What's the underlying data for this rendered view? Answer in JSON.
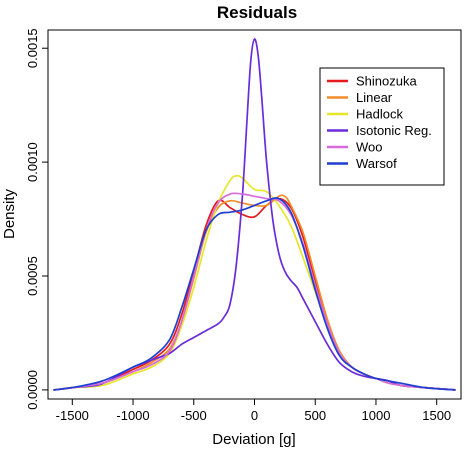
{
  "chart_data": {
    "type": "line",
    "title": "Residuals",
    "xlabel": "Deviation [g]",
    "ylabel": "Density",
    "xlim": [
      -1700,
      1700
    ],
    "ylim": [
      -4e-05,
      0.00158
    ],
    "x_ticks": [
      -1500,
      -1000,
      -500,
      0,
      500,
      1000,
      1500
    ],
    "x_tick_labels": [
      "-1500",
      "-1000",
      "-500",
      "0",
      "500",
      "1000",
      "1500"
    ],
    "y_ticks": [
      0,
      0.0005,
      0.001,
      0.0015
    ],
    "y_tick_labels": [
      "0.0000",
      "0.0005",
      "0.0010",
      "0.0015"
    ],
    "grid": false,
    "legend_position": "top-right",
    "series": [
      {
        "name": "Shinozuka",
        "color": "#e41a1c",
        "points": [
          [
            -1650,
            0
          ],
          [
            -1500,
            1e-05
          ],
          [
            -1250,
            3e-05
          ],
          [
            -1000,
            9e-05
          ],
          [
            -850,
            0.00013
          ],
          [
            -700,
            0.0002
          ],
          [
            -600,
            0.00033
          ],
          [
            -500,
            0.00052
          ],
          [
            -400,
            0.00072
          ],
          [
            -300,
            0.00083
          ],
          [
            -200,
            0.0008
          ],
          [
            -100,
            0.00077
          ],
          [
            0,
            0.00076
          ],
          [
            100,
            0.00081
          ],
          [
            200,
            0.00084
          ],
          [
            300,
            0.0008
          ],
          [
            400,
            0.00067
          ],
          [
            500,
            0.00048
          ],
          [
            600,
            0.0003
          ],
          [
            700,
            0.00017
          ],
          [
            800,
            0.0001
          ],
          [
            900,
            7e-05
          ],
          [
            1000,
            5e-05
          ],
          [
            1100,
            4e-05
          ],
          [
            1200,
            2e-05
          ],
          [
            1400,
            1e-05
          ],
          [
            1650,
            0
          ]
        ]
      },
      {
        "name": "Linear",
        "color": "#f28c28",
        "points": [
          [
            -1650,
            0
          ],
          [
            -1500,
            1e-05
          ],
          [
            -1250,
            3e-05
          ],
          [
            -1000,
            8e-05
          ],
          [
            -850,
            0.00012
          ],
          [
            -700,
            0.00018
          ],
          [
            -600,
            0.0003
          ],
          [
            -500,
            0.00049
          ],
          [
            -400,
            0.00069
          ],
          [
            -300,
            0.0008
          ],
          [
            -200,
            0.00083
          ],
          [
            -100,
            0.00082
          ],
          [
            0,
            0.00081
          ],
          [
            100,
            0.00081
          ],
          [
            200,
            0.00085
          ],
          [
            250,
            0.00085
          ],
          [
            300,
            0.00081
          ],
          [
            400,
            0.00069
          ],
          [
            500,
            0.0005
          ],
          [
            600,
            0.00031
          ],
          [
            700,
            0.00017
          ],
          [
            800,
            0.0001
          ],
          [
            900,
            7e-05
          ],
          [
            1000,
            5e-05
          ],
          [
            1100,
            4e-05
          ],
          [
            1200,
            2e-05
          ],
          [
            1400,
            1e-05
          ],
          [
            1650,
            0
          ]
        ]
      },
      {
        "name": "Hadlock",
        "color": "#e6e62a",
        "points": [
          [
            -1650,
            0
          ],
          [
            -1500,
            1e-05
          ],
          [
            -1250,
            2e-05
          ],
          [
            -1000,
            7e-05
          ],
          [
            -850,
            0.0001
          ],
          [
            -700,
            0.00016
          ],
          [
            -600,
            0.00028
          ],
          [
            -500,
            0.00045
          ],
          [
            -400,
            0.00065
          ],
          [
            -300,
            0.00082
          ],
          [
            -200,
            0.00092
          ],
          [
            -150,
            0.00094
          ],
          [
            -100,
            0.00093
          ],
          [
            0,
            0.00088
          ],
          [
            100,
            0.00087
          ],
          [
            200,
            0.00081
          ],
          [
            300,
            0.00072
          ],
          [
            400,
            0.00058
          ],
          [
            500,
            0.00043
          ],
          [
            600,
            0.00028
          ],
          [
            700,
            0.00016
          ],
          [
            800,
            0.0001
          ],
          [
            900,
            7e-05
          ],
          [
            1000,
            5e-05
          ],
          [
            1100,
            3e-05
          ],
          [
            1200,
            2e-05
          ],
          [
            1400,
            1e-05
          ],
          [
            1650,
            0
          ]
        ]
      },
      {
        "name": "Isotonic Reg.",
        "color": "#6a2bd8",
        "points": [
          [
            -1650,
            0
          ],
          [
            -1500,
            1e-05
          ],
          [
            -1300,
            2e-05
          ],
          [
            -1200,
            4e-05
          ],
          [
            -1100,
            7e-05
          ],
          [
            -1000,
            0.0001
          ],
          [
            -900,
            0.00012
          ],
          [
            -800,
            0.00014
          ],
          [
            -700,
            0.00016
          ],
          [
            -600,
            0.0002
          ],
          [
            -500,
            0.00023
          ],
          [
            -400,
            0.00026
          ],
          [
            -300,
            0.00029
          ],
          [
            -250,
            0.00032
          ],
          [
            -200,
            0.00038
          ],
          [
            -150,
            0.00055
          ],
          [
            -100,
            0.00085
          ],
          [
            -60,
            0.0012
          ],
          [
            -30,
            0.00145
          ],
          [
            0,
            0.00154
          ],
          [
            30,
            0.00147
          ],
          [
            60,
            0.00128
          ],
          [
            100,
            0.001
          ],
          [
            150,
            0.00075
          ],
          [
            200,
            0.0006
          ],
          [
            250,
            0.00052
          ],
          [
            300,
            0.00048
          ],
          [
            350,
            0.00045
          ],
          [
            400,
            0.0004
          ],
          [
            500,
            0.0003
          ],
          [
            600,
            0.0002
          ],
          [
            700,
            0.00012
          ],
          [
            800,
            8e-05
          ],
          [
            900,
            6e-05
          ],
          [
            1000,
            5e-05
          ],
          [
            1100,
            4e-05
          ],
          [
            1200,
            2e-05
          ],
          [
            1400,
            1e-05
          ],
          [
            1650,
            0
          ]
        ]
      },
      {
        "name": "Woo",
        "color": "#d76bdc",
        "points": [
          [
            -1650,
            0
          ],
          [
            -1500,
            1e-05
          ],
          [
            -1250,
            3e-05
          ],
          [
            -1000,
            8e-05
          ],
          [
            -850,
            0.00011
          ],
          [
            -700,
            0.00017
          ],
          [
            -600,
            0.0003
          ],
          [
            -500,
            0.0005
          ],
          [
            -400,
            0.0007
          ],
          [
            -300,
            0.00082
          ],
          [
            -200,
            0.00086
          ],
          [
            -100,
            0.00086
          ],
          [
            0,
            0.00085
          ],
          [
            100,
            0.00084
          ],
          [
            200,
            0.00083
          ],
          [
            300,
            0.00077
          ],
          [
            400,
            0.00064
          ],
          [
            500,
            0.00046
          ],
          [
            600,
            0.00029
          ],
          [
            700,
            0.00016
          ],
          [
            800,
            0.0001
          ],
          [
            900,
            7e-05
          ],
          [
            1000,
            5e-05
          ],
          [
            1100,
            3e-05
          ],
          [
            1200,
            2e-05
          ],
          [
            1400,
            1e-05
          ],
          [
            1650,
            0
          ]
        ]
      },
      {
        "name": "Warsof",
        "color": "#1f3fd1",
        "points": [
          [
            -1650,
            0
          ],
          [
            -1500,
            1e-05
          ],
          [
            -1250,
            4e-05
          ],
          [
            -1000,
            0.0001
          ],
          [
            -850,
            0.00014
          ],
          [
            -700,
            0.00022
          ],
          [
            -600,
            0.00036
          ],
          [
            -500,
            0.00053
          ],
          [
            -400,
            0.0007
          ],
          [
            -300,
            0.00077
          ],
          [
            -200,
            0.00078
          ],
          [
            -100,
            0.00079
          ],
          [
            0,
            0.00081
          ],
          [
            100,
            0.00083
          ],
          [
            200,
            0.00084
          ],
          [
            300,
            0.00078
          ],
          [
            400,
            0.00063
          ],
          [
            500,
            0.00044
          ],
          [
            600,
            0.00027
          ],
          [
            700,
            0.00015
          ],
          [
            800,
            0.0001
          ],
          [
            900,
            7e-05
          ],
          [
            1000,
            5e-05
          ],
          [
            1100,
            4e-05
          ],
          [
            1200,
            3e-05
          ],
          [
            1400,
            1e-05
          ],
          [
            1650,
            0
          ]
        ]
      }
    ]
  }
}
